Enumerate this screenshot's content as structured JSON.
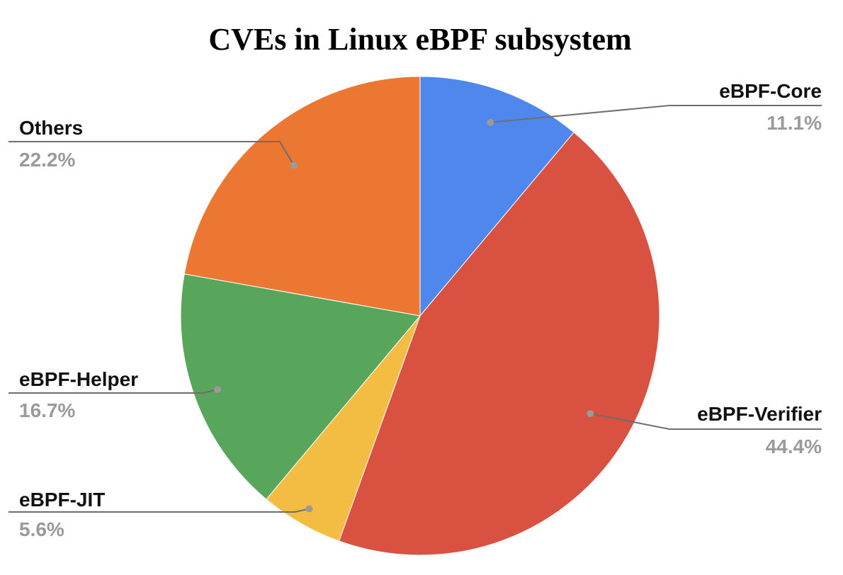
{
  "chart_data": {
    "type": "pie",
    "title": "CVEs in Linux eBPF subsystem",
    "legend": "none",
    "slices": [
      {
        "label": "eBPF-Core",
        "value": 11.1,
        "pct_label": "11.1%",
        "color": "#5087EC"
      },
      {
        "label": "eBPF-Verifier",
        "value": 44.4,
        "pct_label": "44.4%",
        "color": "#D95141"
      },
      {
        "label": "eBPF-JIT",
        "value": 5.6,
        "pct_label": "5.6%",
        "color": "#F2BD42"
      },
      {
        "label": "eBPF-Helper",
        "value": 16.7,
        "pct_label": "16.7%",
        "color": "#58A65C"
      },
      {
        "label": "Others",
        "value": 22.2,
        "pct_label": "22.2%",
        "color": "#EC7733"
      }
    ]
  }
}
